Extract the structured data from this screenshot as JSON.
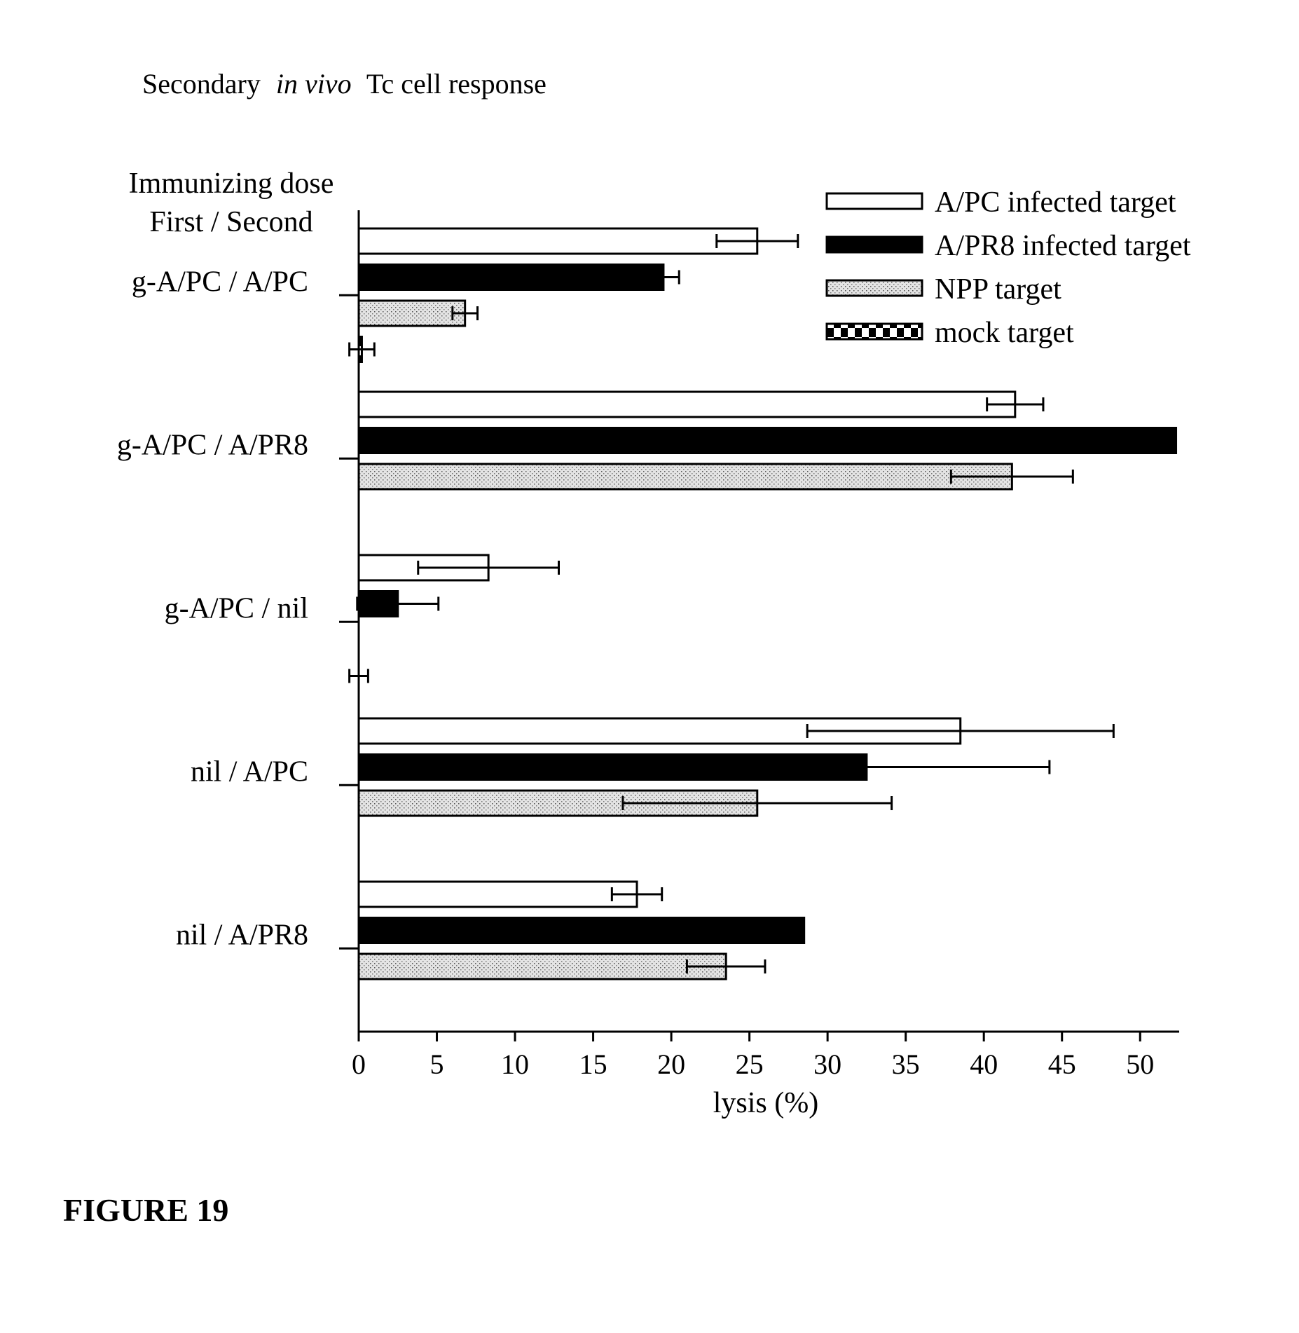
{
  "title": {
    "prefix": "Secondary",
    "italic": "in vivo",
    "suffix": "Tc cell response"
  },
  "figure_label": "FIGURE 19",
  "chart_data": {
    "type": "bar",
    "orientation": "horizontal",
    "group_header": [
      "Immunizing dose",
      "First / Second"
    ],
    "categories": [
      "g-A/PC / A/PC",
      "g-A/PC / A/PR8",
      "g-A/PC / nil",
      "nil / A/PC",
      "nil / A/PR8"
    ],
    "series": [
      {
        "name": "A/PC infected target",
        "pattern": "open",
        "fill": "#ffffff",
        "values": [
          25.5,
          42,
          8.3,
          38.5,
          17.8
        ],
        "errors": [
          2.6,
          1.8,
          4.5,
          9.8,
          1.6
        ]
      },
      {
        "name": "A/PR8 infected target",
        "pattern": "solid",
        "fill": "#000000",
        "values": [
          19.5,
          52.3,
          2.5,
          32.5,
          28.5
        ],
        "errors": [
          1.0,
          null,
          2.6,
          11.7,
          null
        ]
      },
      {
        "name": "NPP target",
        "pattern": "stippled",
        "fill": "#d4d4d4",
        "values": [
          6.8,
          41.8,
          0,
          25.5,
          23.5
        ],
        "errors": [
          0.8,
          3.9,
          null,
          8.6,
          2.5
        ]
      },
      {
        "name": "mock target",
        "pattern": "checkered",
        "fill": "#000000",
        "values": [
          0.2,
          null,
          0,
          null,
          null
        ],
        "errors": [
          0.8,
          null,
          0.6,
          null,
          null
        ]
      }
    ],
    "xlabel": "lysis (%)",
    "xlim": [
      0,
      52.5
    ],
    "xticks": [
      0,
      5,
      10,
      15,
      20,
      25,
      30,
      35,
      40,
      45,
      50
    ],
    "grid": false,
    "legend_position": "top-right",
    "error_bars": true
  }
}
